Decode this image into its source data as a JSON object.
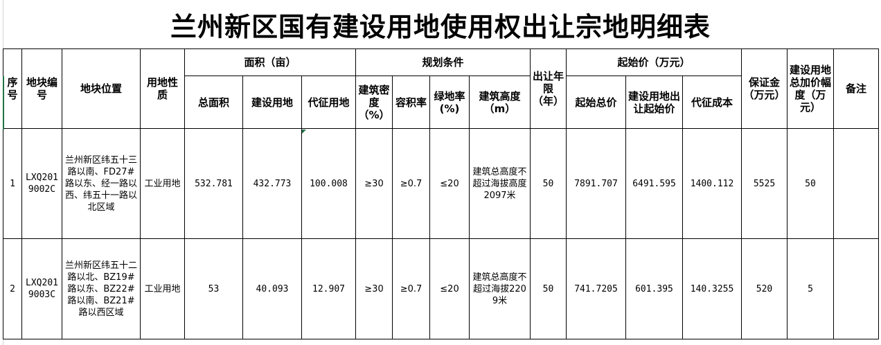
{
  "title": "兰州新区国有建设用地使用权出让宗地明细表",
  "header": {
    "seq": "序号",
    "parcel_no": "地块编号",
    "location": "地块位置",
    "land_use": "用地性质",
    "area_group": "面积（亩）",
    "total_area": "总面积",
    "construction_land": "建设用地",
    "expropriation_land": "代征用地",
    "planning_group": "规划条件",
    "building_density": "建筑密度（%）",
    "plot_ratio": "容积率",
    "green_ratio": "绿地率(%)",
    "building_height": "建筑高度（m）",
    "term": "出让年限（年）",
    "price_group": "起始价（万元）",
    "start_total": "起始总价",
    "construction_start": "建设用地出让起始价",
    "expropriation_cost": "代征成本",
    "deposit": "保证金（万元）",
    "increment": "建设用地总加价幅度（万元）",
    "remarks": "备注"
  },
  "rows": [
    {
      "seq": "1",
      "parcel_no": "LXQ2019002C",
      "location": "兰州新区纬五十三路以南、FD27#路以东、经一路以西、纬五十一路以北区域",
      "land_use": "工业用地",
      "total_area": "532.781",
      "construction_land": "432.773",
      "expropriation_land": "100.008",
      "building_density": "≥30",
      "plot_ratio": "≥0.7",
      "green_ratio": "≤20",
      "building_height": "建筑总高度不超过海拔高度2097米",
      "term": "50",
      "start_total": "7891.707",
      "construction_start": "6491.595",
      "expropriation_cost": "1400.112",
      "deposit": "5525",
      "increment": "50",
      "remarks": ""
    },
    {
      "seq": "2",
      "parcel_no": "LXQ2019003C",
      "location": "兰州新区纬五十二路以北、BZ19#路以东、BZ22#路以南、BZ21#路以西区域",
      "land_use": "工业用地",
      "total_area": "53",
      "construction_land": "40.093",
      "expropriation_land": "12.907",
      "building_density": "≥30",
      "plot_ratio": "≥0.7",
      "green_ratio": "≤20",
      "building_height": "建筑总高度不超过海拔2209米",
      "term": "50",
      "start_total": "741.7205",
      "construction_start": "601.395",
      "expropriation_cost": "140.3255",
      "deposit": "520",
      "increment": "5",
      "remarks": ""
    }
  ]
}
